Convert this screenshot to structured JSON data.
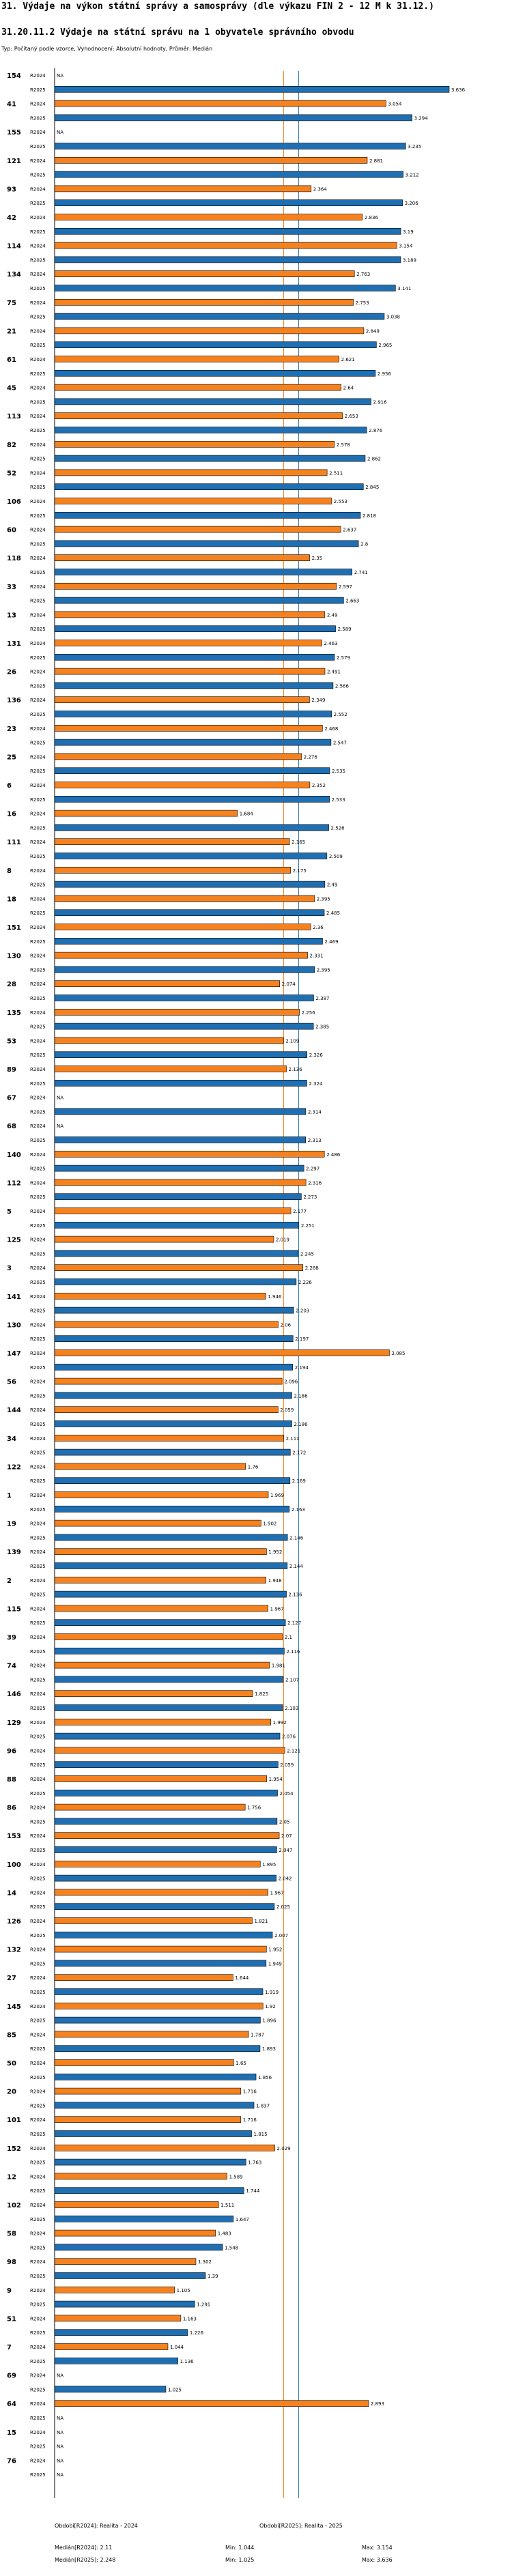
{
  "header": {
    "title": "31. Výdaje na výkon státní správy a samosprávy (dle výkazu FIN 2 - 12 M k 31.12.)",
    "subtitle": "31.20.11.2 Výdaje na státní správu na 1 obyvatele správního obvodu",
    "meta": "Typ: Počítaný podle vzorce, Vyhodnocení: Absolutní hodnoty, Průměr: Medián"
  },
  "colors": {
    "r2024": "#f5821f",
    "r2025": "#1f6fb2",
    "axis": "#000000",
    "median2024": "#f5821f",
    "median2025": "#1f6fb2"
  },
  "chart_data": {
    "type": "bar",
    "orientation": "horizontal",
    "xlim": [
      0,
      3.636
    ],
    "series_names": [
      "R2024",
      "R2025"
    ],
    "na_label": "NA",
    "medians": {
      "R2024": 2.11,
      "R2025": 2.248
    },
    "categories": [
      "154",
      "41",
      "155",
      "121",
      "93",
      "42",
      "114",
      "134",
      "75",
      "21",
      "61",
      "45",
      "113",
      "82",
      "52",
      "106",
      "60",
      "118",
      "33",
      "13",
      "131",
      "26",
      "136",
      "23",
      "25",
      "6",
      "16",
      "111",
      "8",
      "18",
      "151",
      "130",
      "28",
      "135",
      "53",
      "89",
      "67",
      "68",
      "140",
      "112",
      "5",
      "125",
      "3",
      "141",
      "130",
      "147",
      "56",
      "144",
      "34",
      "122",
      "1",
      "19",
      "139",
      "2",
      "115",
      "39",
      "74",
      "146",
      "129",
      "96",
      "88",
      "86",
      "153",
      "100",
      "14",
      "126",
      "132",
      "27",
      "145",
      "85",
      "50",
      "20",
      "101",
      "152",
      "12",
      "102",
      "58",
      "98",
      "9",
      "51",
      "7",
      "69",
      "64",
      "15",
      "76"
    ],
    "R2024": [
      null,
      3.054,
      null,
      2.881,
      2.364,
      2.836,
      3.154,
      2.763,
      2.753,
      2.849,
      2.621,
      2.64,
      2.653,
      2.578,
      2.511,
      2.553,
      2.637,
      2.35,
      2.597,
      2.49,
      2.463,
      2.491,
      2.349,
      2.468,
      2.276,
      2.352,
      1.684,
      2.165,
      2.175,
      2.395,
      2.36,
      2.331,
      2.074,
      2.256,
      2.109,
      2.136,
      null,
      null,
      2.486,
      2.316,
      2.177,
      2.019,
      2.288,
      1.946,
      2.06,
      3.085,
      2.096,
      2.059,
      2.111,
      1.76,
      1.969,
      1.902,
      1.952,
      1.948,
      1.967,
      2.1,
      1.981,
      1.825,
      1.992,
      2.121,
      1.954,
      1.756,
      2.07,
      1.895,
      1.967,
      1.821,
      1.952,
      1.644,
      1.92,
      1.787,
      1.65,
      1.716,
      1.716,
      2.029,
      1.589,
      1.511,
      1.483,
      1.302,
      1.105,
      1.163,
      1.044,
      null,
      2.893,
      null,
      null
    ],
    "R2025": [
      3.636,
      3.294,
      3.235,
      3.212,
      3.206,
      3.19,
      3.189,
      3.141,
      3.038,
      2.965,
      2.956,
      2.916,
      2.876,
      2.862,
      2.845,
      2.818,
      2.8,
      2.741,
      2.663,
      2.589,
      2.579,
      2.566,
      2.552,
      2.547,
      2.535,
      2.533,
      2.526,
      2.509,
      2.49,
      2.485,
      2.469,
      2.395,
      2.387,
      2.385,
      2.326,
      2.324,
      2.314,
      2.313,
      2.297,
      2.273,
      2.251,
      2.245,
      2.226,
      2.203,
      2.197,
      2.194,
      2.186,
      2.186,
      2.172,
      2.169,
      2.163,
      2.146,
      2.144,
      2.136,
      2.127,
      2.116,
      2.107,
      2.103,
      2.076,
      2.059,
      2.054,
      2.05,
      2.047,
      2.042,
      2.025,
      2.007,
      1.949,
      1.919,
      1.896,
      1.893,
      1.856,
      1.837,
      1.815,
      1.763,
      1.744,
      1.647,
      1.548,
      1.39,
      1.291,
      1.226,
      1.136,
      1.025,
      null,
      null,
      null
    ]
  },
  "footer": {
    "left_title": "Období[R2024]: Realita - 2024",
    "right_title": "Období[R2025]: Realita - 2025",
    "median_2024": "Medián[R2024]: 2.11",
    "median_2025": "Medián[R2025]: 2.248",
    "min_2024": "Min: 1.044",
    "min_2025": "Min: 1.025",
    "max_2024": "Max: 3.154",
    "max_2025": "Max: 3.636"
  }
}
